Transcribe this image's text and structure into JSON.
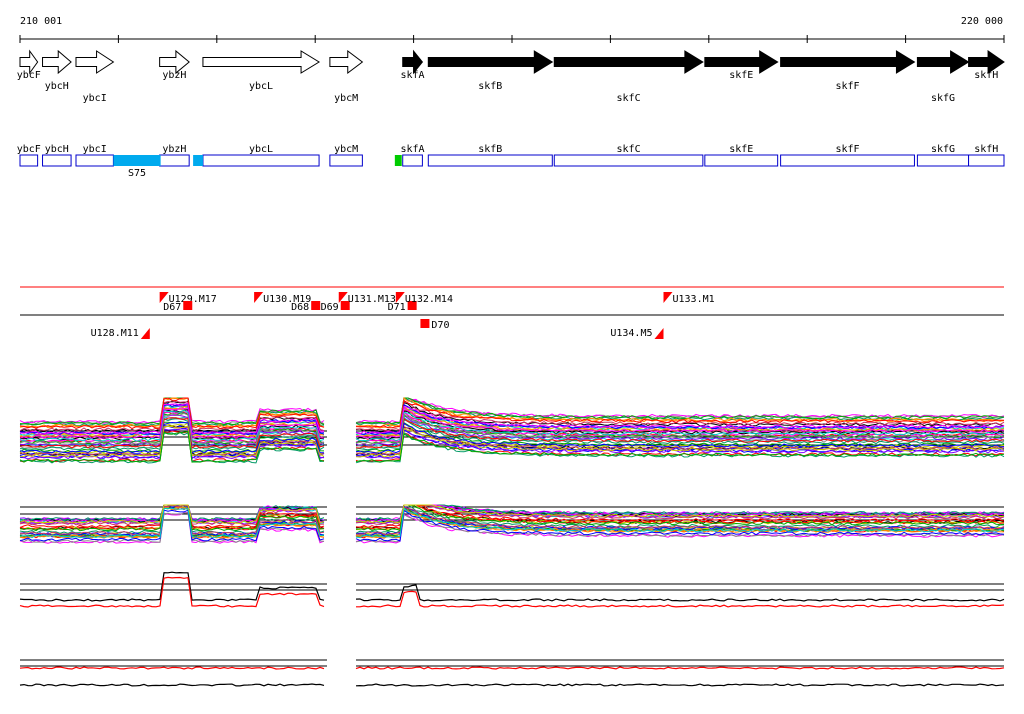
{
  "coords": {
    "start": "210 001",
    "end": "220 000",
    "start_bp": 210001,
    "end_bp": 220000
  },
  "genes": [
    {
      "name": "ybcF",
      "start": 210001,
      "end": 210180,
      "strand": "+",
      "kind": "open"
    },
    {
      "name": "ybcH",
      "start": 210230,
      "end": 210520,
      "strand": "+",
      "kind": "open"
    },
    {
      "name": "ybcI",
      "start": 210570,
      "end": 210950,
      "strand": "+",
      "kind": "open"
    },
    {
      "name": "ybzH",
      "start": 211420,
      "end": 211720,
      "strand": "+",
      "kind": "open"
    },
    {
      "name": "ybcL",
      "start": 211860,
      "end": 213040,
      "strand": "+",
      "kind": "open"
    },
    {
      "name": "ybcM",
      "start": 213150,
      "end": 213480,
      "strand": "+",
      "kind": "open"
    },
    {
      "name": "skfA",
      "start": 213890,
      "end": 214090,
      "strand": "+",
      "kind": "filled"
    },
    {
      "name": "skfB",
      "start": 214150,
      "end": 215410,
      "strand": "+",
      "kind": "filled"
    },
    {
      "name": "skfC",
      "start": 215430,
      "end": 216940,
      "strand": "+",
      "kind": "filled"
    },
    {
      "name": "skfE",
      "start": 216960,
      "end": 217700,
      "strand": "+",
      "kind": "filled"
    },
    {
      "name": "skfF",
      "start": 217730,
      "end": 219090,
      "strand": "+",
      "kind": "filled"
    },
    {
      "name": "skfG",
      "start": 219120,
      "end": 219640,
      "strand": "+",
      "kind": "filled"
    },
    {
      "name": "skfH",
      "start": 219640,
      "end": 220000,
      "strand": "+",
      "kind": "filled"
    }
  ],
  "gene_label_rows": {
    "ybcF": 0,
    "ybcH": 1,
    "ybcI": 2,
    "ybzH": 0,
    "ybcL": 1,
    "ybcM": 2,
    "skfA": 0,
    "skfB": 1,
    "skfC": 2,
    "skfE": 0,
    "skfF": 1,
    "skfG": 2,
    "skfH": 0
  },
  "feature_boxes": [
    {
      "name": "ybcF"
    },
    {
      "name": "ybcH"
    },
    {
      "name": "ybcI"
    },
    {
      "name": "ybzH"
    },
    {
      "name": "ybcL"
    },
    {
      "name": "ybcM"
    },
    {
      "name": "skfA"
    },
    {
      "name": "skfB"
    },
    {
      "name": "skfC"
    },
    {
      "name": "skfE"
    },
    {
      "name": "skfF"
    },
    {
      "name": "skfG"
    },
    {
      "name": "skfH"
    }
  ],
  "highlights": [
    {
      "label": "S75",
      "start": 210950,
      "end": 211430,
      "color": "#00aaee"
    },
    {
      "label": "",
      "start": 211760,
      "end": 211860,
      "color": "#00aaee"
    },
    {
      "label": "",
      "start": 213810,
      "end": 213880,
      "color": "#00cc00"
    }
  ],
  "segments": [
    {
      "label": "U128.M11",
      "pos": 211320,
      "strand": "-"
    },
    {
      "label": "U129.M17",
      "pos": 211420,
      "strand": "+"
    },
    {
      "label": "D67",
      "pos": 211660,
      "strand": "d"
    },
    {
      "label": "U130.M19",
      "pos": 212380,
      "strand": "+"
    },
    {
      "label": "D68",
      "pos": 212960,
      "strand": "d"
    },
    {
      "label": "D69",
      "pos": 213260,
      "strand": "d"
    },
    {
      "label": "U131.M13",
      "pos": 213240,
      "strand": "+"
    },
    {
      "label": "D71",
      "pos": 213940,
      "strand": "d"
    },
    {
      "label": "U132.M14",
      "pos": 213820,
      "strand": "+"
    },
    {
      "label": "D70",
      "pos": 214070,
      "strand": "d2"
    },
    {
      "label": "U133.M1",
      "pos": 216540,
      "strand": "+"
    },
    {
      "label": "U134.M5",
      "pos": 216540,
      "strand": "-"
    }
  ],
  "colors": {
    "arrow_filled": "#000000",
    "box_outline": "#0000cc",
    "segment": "#ff0000"
  }
}
